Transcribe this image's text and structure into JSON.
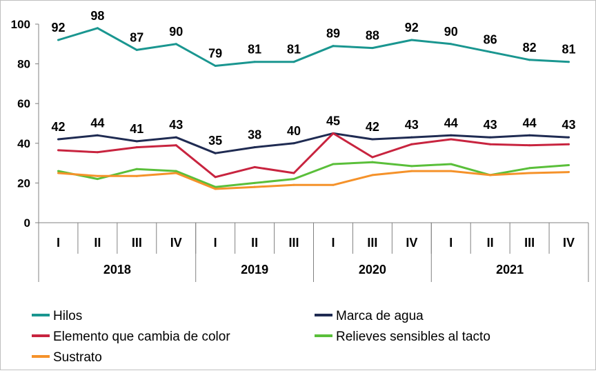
{
  "chart_data": {
    "type": "line",
    "categories": [
      "I",
      "II",
      "III",
      "IV",
      "I",
      "II",
      "III",
      "I",
      "III",
      "IV",
      "I",
      "II",
      "III",
      "IV"
    ],
    "years": [
      {
        "label": "2018",
        "span": 4
      },
      {
        "label": "2019",
        "span": 3
      },
      {
        "label": "2020",
        "span": 3
      },
      {
        "label": "2021",
        "span": 4
      }
    ],
    "ylim": [
      0,
      100
    ],
    "yticks": [
      0,
      20,
      40,
      60,
      80,
      100
    ],
    "legend_position": "bottom",
    "series": [
      {
        "name": "Hilos",
        "color": "#1a9690",
        "values": [
          92,
          98,
          87,
          90,
          79,
          81,
          81,
          89,
          88,
          92,
          90,
          86,
          82,
          81
        ],
        "labels": [
          "92",
          "98",
          "87",
          "90",
          "79",
          "81",
          "81",
          "89",
          "88",
          "92",
          "90",
          "86",
          "82",
          "81"
        ],
        "label_offset": -22
      },
      {
        "name": "Marca de agua",
        "color": "#1f2b52",
        "values": [
          42,
          44,
          41,
          43,
          35,
          38,
          40,
          45,
          42,
          43,
          44,
          43,
          44,
          43
        ],
        "labels": [
          "42",
          "44",
          "41",
          "43",
          "35",
          "38",
          "40",
          "45",
          "42",
          "43",
          "44",
          "43",
          "44",
          "43"
        ],
        "label_offset": -22
      },
      {
        "name": "Elemento que cambia de color",
        "color": "#c8243f",
        "values": [
          36.5,
          35.5,
          38,
          39,
          23,
          28,
          25,
          45,
          33,
          39.5,
          42,
          39.5,
          39,
          39.5
        ]
      },
      {
        "name": "Relieves sensibles al tacto",
        "color": "#5abf3a",
        "values": [
          26,
          22,
          27,
          26,
          18,
          20,
          22,
          29.5,
          30.5,
          28.5,
          29.5,
          24,
          27.5,
          29
        ]
      },
      {
        "name": "Sustrato",
        "color": "#f5922a",
        "values": [
          25,
          23.5,
          23.5,
          25,
          17,
          18,
          19,
          19,
          24,
          26,
          26,
          24,
          25,
          25.5
        ]
      }
    ]
  }
}
